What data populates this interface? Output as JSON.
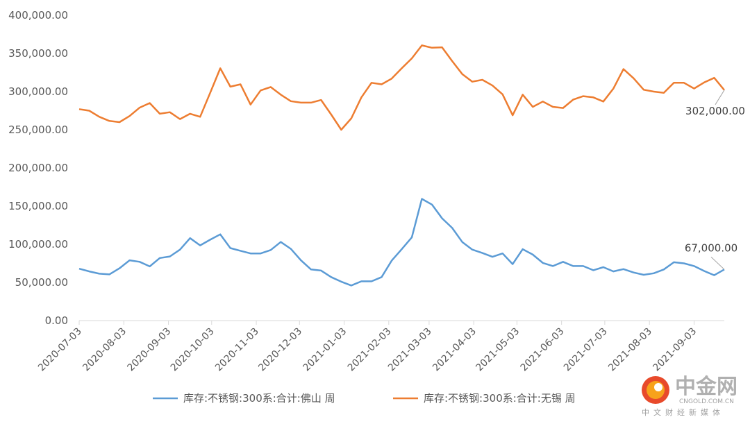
{
  "chart_data": {
    "type": "line",
    "x": [
      "2020-07-03",
      "2020-07-10",
      "2020-07-17",
      "2020-07-24",
      "2020-07-31",
      "2020-08-07",
      "2020-08-14",
      "2020-08-21",
      "2020-08-28",
      "2020-09-04",
      "2020-09-11",
      "2020-09-18",
      "2020-09-25",
      "2020-10-02",
      "2020-10-09",
      "2020-10-16",
      "2020-10-23",
      "2020-10-30",
      "2020-11-06",
      "2020-11-13",
      "2020-11-20",
      "2020-11-27",
      "2020-12-04",
      "2020-12-11",
      "2020-12-18",
      "2020-12-25",
      "2021-01-01",
      "2021-01-08",
      "2021-01-15",
      "2021-01-22",
      "2021-01-29",
      "2021-02-05",
      "2021-02-12",
      "2021-02-19",
      "2021-02-26",
      "2021-03-05",
      "2021-03-12",
      "2021-03-19",
      "2021-03-26",
      "2021-04-02",
      "2021-04-09",
      "2021-04-16",
      "2021-04-23",
      "2021-04-30",
      "2021-05-07",
      "2021-05-14",
      "2021-05-21",
      "2021-05-28",
      "2021-06-04",
      "2021-06-11",
      "2021-06-18",
      "2021-06-25",
      "2021-07-02",
      "2021-07-09",
      "2021-07-16",
      "2021-07-23",
      "2021-07-30",
      "2021-08-06",
      "2021-08-13",
      "2021-08-20",
      "2021-08-27",
      "2021-09-03",
      "2021-09-10",
      "2021-09-17",
      "2021-09-24"
    ],
    "x_ticks": [
      "2020-07-03",
      "2020-08-03",
      "2020-09-03",
      "2020-10-03",
      "2020-11-03",
      "2020-12-03",
      "2021-01-03",
      "2021-02-03",
      "2021-03-03",
      "2021-04-03",
      "2021-05-03",
      "2021-06-03",
      "2021-07-03",
      "2021-08-03",
      "2021-09-03"
    ],
    "y_ticks": [
      "0.00",
      "50,000.00",
      "100,000.00",
      "150,000.00",
      "200,000.00",
      "250,000.00",
      "300,000.00",
      "350,000.00",
      "400,000.00"
    ],
    "ylim": [
      0,
      400000
    ],
    "grid": false,
    "legend_position": "bottom",
    "series": [
      {
        "name": "库存:不锈钢:300系:合计:佛山 周",
        "color": "#5b9bd5",
        "values": [
          68000,
          64500,
          61500,
          60500,
          68500,
          79000,
          77000,
          71000,
          82000,
          84000,
          93000,
          108000,
          98500,
          106000,
          113000,
          95000,
          91500,
          88000,
          88000,
          92500,
          103000,
          94000,
          79000,
          67000,
          65500,
          57000,
          51000,
          46000,
          51500,
          51500,
          57000,
          78500,
          93500,
          109000,
          159500,
          152000,
          134000,
          121500,
          103000,
          93000,
          88500,
          83500,
          88000,
          74000,
          93500,
          86500,
          75500,
          71500,
          77000,
          71500,
          71500,
          66000,
          70000,
          64500,
          67500,
          63000,
          60000,
          62000,
          67000,
          76500,
          75000,
          71500,
          65000,
          59500,
          67000
        ],
        "end_label": "67,000.00"
      },
      {
        "name": "库存:不锈钢:300系:合计:无锡 周",
        "color": "#ed7d31",
        "values": [
          277000,
          275000,
          267000,
          261500,
          260000,
          268000,
          279000,
          285000,
          271000,
          273000,
          264000,
          271000,
          267000,
          298500,
          330500,
          306500,
          309500,
          283000,
          301500,
          306000,
          296000,
          287500,
          285500,
          285500,
          289000,
          270000,
          250000,
          265000,
          292500,
          311500,
          309500,
          317000,
          330500,
          343500,
          360500,
          357500,
          358000,
          340000,
          323000,
          313000,
          315500,
          308000,
          296500,
          269000,
          296000,
          280000,
          287000,
          280000,
          278500,
          289500,
          294000,
          292500,
          287000,
          304000,
          329500,
          317500,
          302500,
          300000,
          298500,
          311500,
          311500,
          304000,
          312000,
          318000,
          302000
        ],
        "end_label": "302,000.00"
      }
    ]
  },
  "watermark": {
    "brand": "中金网",
    "url": "CNGOLD.COM.CN",
    "tagline": "中文财经新媒体"
  }
}
